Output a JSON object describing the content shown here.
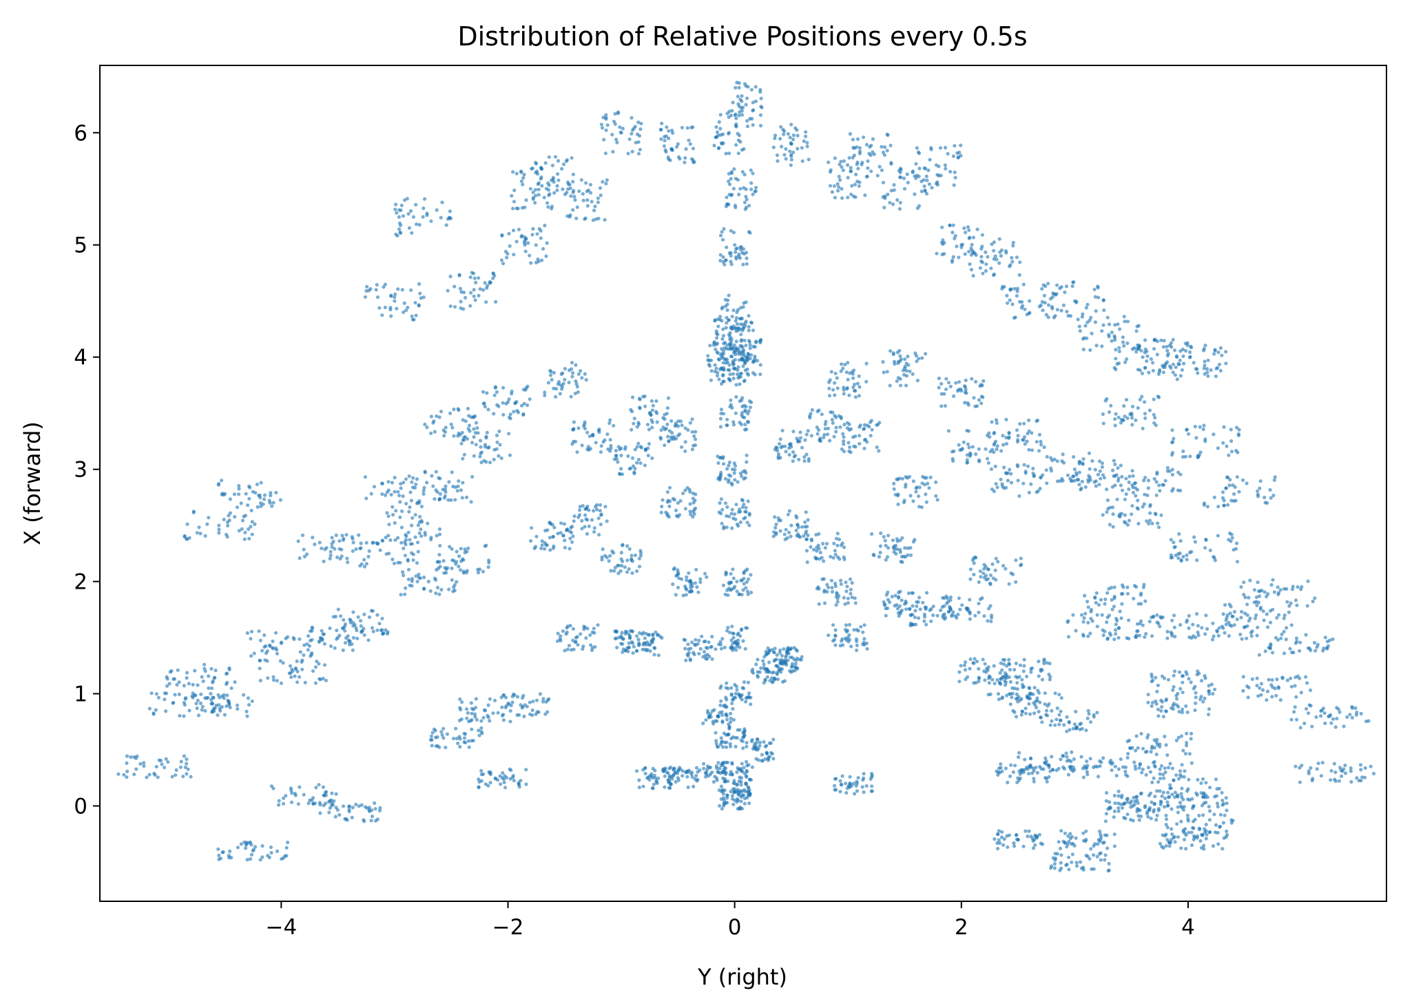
{
  "chart_data": {
    "type": "scatter",
    "title": "Distribution of Relative Positions every 0.5s",
    "xlabel": "Y (right)",
    "ylabel": "X (forward)",
    "xlim": [
      -5.6,
      5.75
    ],
    "ylim": [
      -0.85,
      6.6
    ],
    "xticks": [
      -4,
      -2,
      0,
      2,
      4
    ],
    "xtick_labels": [
      "−4",
      "−2",
      "0",
      "2",
      "4"
    ],
    "yticks": [
      0,
      1,
      2,
      3,
      4,
      5,
      6
    ],
    "ytick_labels": [
      "0",
      "1",
      "2",
      "3",
      "4",
      "5",
      "6"
    ],
    "grid": false,
    "legend": "none",
    "marker_color": "#1f77b4",
    "marker_alpha": 0.6,
    "approx_point_count": 6000,
    "series": [
      {
        "values": [
          [
            0,
            0.05
          ],
          [
            0.02,
            0.3
          ],
          [
            -0.03,
            0.6
          ],
          [
            0.01,
            1.0
          ],
          [
            -0.01,
            1.5
          ],
          [
            0.02,
            2.0
          ],
          [
            0,
            2.6
          ],
          [
            -0.02,
            3.0
          ],
          [
            0.01,
            3.5
          ],
          [
            0,
            3.9
          ],
          [
            0.05,
            4.1
          ],
          [
            -0.05,
            4.2
          ],
          [
            0.1,
            4.0
          ],
          [
            -0.1,
            3.95
          ],
          [
            0.02,
            4.4
          ],
          [
            0,
            5.0
          ],
          [
            0.05,
            5.5
          ],
          [
            -0.05,
            6.0
          ],
          [
            0.1,
            6.25
          ],
          [
            0,
            0.15
          ],
          [
            -0.2,
            0.3
          ],
          [
            0.2,
            0.5
          ],
          [
            -0.15,
            0.8
          ],
          [
            0.3,
            1.2
          ],
          [
            -0.3,
            1.4
          ],
          [
            0.4,
            1.3
          ],
          [
            -0.4,
            2.0
          ],
          [
            0.5,
            2.5
          ],
          [
            -0.5,
            2.7
          ],
          [
            0.8,
            2.3
          ],
          [
            -1.0,
            2.2
          ],
          [
            -1.5,
            3.8
          ],
          [
            1.0,
            3.8
          ],
          [
            1.5,
            3.9
          ],
          [
            -2.0,
            3.6
          ],
          [
            2.0,
            3.7
          ],
          [
            -2.5,
            3.4
          ],
          [
            2.5,
            3.3
          ],
          [
            -3.0,
            2.8
          ],
          [
            3.0,
            3.0
          ],
          [
            -0.8,
            1.45
          ],
          [
            -0.5,
            0.25
          ],
          [
            -0.7,
            0.25
          ],
          [
            0.45,
            1.3
          ],
          [
            1.05,
            0.2
          ],
          [
            -4.25,
            2.8
          ],
          [
            -4.55,
            2.5
          ],
          [
            -4.7,
            1.15
          ],
          [
            -4.55,
            0.9
          ],
          [
            -4.85,
            0.9
          ],
          [
            -5.1,
            0.35
          ],
          [
            -4.25,
            -0.4
          ],
          [
            -3.8,
            0.1
          ],
          [
            -3.4,
            -0.05
          ],
          [
            -3.5,
            1.5
          ],
          [
            -3.9,
            1.2
          ],
          [
            -4.0,
            1.45
          ],
          [
            -2.7,
            2.0
          ],
          [
            -2.85,
            2.5
          ],
          [
            -3.6,
            2.3
          ],
          [
            -3.3,
            1.65
          ],
          [
            -2.2,
            0.85
          ],
          [
            -1.85,
            0.9
          ],
          [
            -2.45,
            0.6
          ],
          [
            -2.05,
            0.25
          ],
          [
            -3.0,
            4.5
          ],
          [
            -2.75,
            5.25
          ],
          [
            -2.3,
            4.6
          ],
          [
            -1.85,
            5.0
          ],
          [
            -1.8,
            5.5
          ],
          [
            -1.6,
            5.6
          ],
          [
            -1.3,
            5.4
          ],
          [
            -1.0,
            6.0
          ],
          [
            -0.5,
            5.9
          ],
          [
            0.5,
            5.9
          ],
          [
            1.0,
            5.6
          ],
          [
            1.2,
            5.8
          ],
          [
            1.5,
            5.5
          ],
          [
            1.8,
            5.7
          ],
          [
            2.0,
            5.0
          ],
          [
            2.3,
            4.9
          ],
          [
            2.6,
            4.5
          ],
          [
            3.0,
            4.5
          ],
          [
            3.3,
            4.2
          ],
          [
            3.6,
            4.0
          ],
          [
            3.9,
            4.0
          ],
          [
            4.05,
            3.95
          ],
          [
            3.5,
            3.5
          ],
          [
            3.25,
            2.95
          ],
          [
            3.65,
            2.9
          ],
          [
            4.15,
            3.25
          ],
          [
            4.45,
            2.8
          ],
          [
            4.15,
            2.3
          ],
          [
            3.5,
            2.6
          ],
          [
            3.2,
            1.6
          ],
          [
            3.35,
            1.85
          ],
          [
            3.75,
            1.6
          ],
          [
            4.3,
            1.6
          ],
          [
            4.6,
            1.7
          ],
          [
            4.8,
            1.9
          ],
          [
            4.95,
            1.45
          ],
          [
            4.8,
            1.05
          ],
          [
            5.25,
            0.8
          ],
          [
            5.3,
            0.3
          ],
          [
            3.95,
            1.1
          ],
          [
            3.9,
            0.9
          ],
          [
            3.75,
            0.55
          ],
          [
            3.8,
            0.3
          ],
          [
            4.05,
            0.0
          ],
          [
            4.1,
            -0.2
          ],
          [
            4.05,
            -0.3
          ],
          [
            4.0,
            0.15
          ],
          [
            3.55,
            0.05
          ],
          [
            3.55,
            -0.05
          ],
          [
            3.1,
            -0.3
          ],
          [
            3.05,
            -0.5
          ],
          [
            2.75,
            0.4
          ],
          [
            2.65,
            0.9
          ],
          [
            2.55,
            0.3
          ],
          [
            2.5,
            -0.3
          ],
          [
            2.55,
            1.2
          ],
          [
            2.45,
            1.05
          ],
          [
            2.2,
            1.2
          ],
          [
            3.2,
            0.35
          ],
          [
            2.95,
            0.75
          ],
          [
            2.05,
            1.75
          ],
          [
            1.75,
            1.7
          ],
          [
            1.5,
            1.8
          ],
          [
            1.4,
            2.3
          ],
          [
            2.3,
            2.1
          ],
          [
            1.0,
            1.5
          ],
          [
            0.9,
            1.9
          ],
          [
            -0.9,
            1.45
          ],
          [
            -1.4,
            1.5
          ],
          [
            -1.6,
            2.4
          ],
          [
            -1.3,
            2.55
          ],
          [
            -1.25,
            3.3
          ],
          [
            -0.75,
            3.5
          ],
          [
            -0.9,
            3.1
          ],
          [
            -0.5,
            3.3
          ],
          [
            0.5,
            3.2
          ],
          [
            0.8,
            3.4
          ],
          [
            1.1,
            3.3
          ],
          [
            1.6,
            2.8
          ],
          [
            2.1,
            3.2
          ],
          [
            2.5,
            2.9
          ],
          [
            -2.4,
            2.2
          ],
          [
            -2.55,
            2.85
          ],
          [
            -2.2,
            3.2
          ],
          [
            -3.05,
            2.25
          ]
        ]
      }
    ]
  }
}
